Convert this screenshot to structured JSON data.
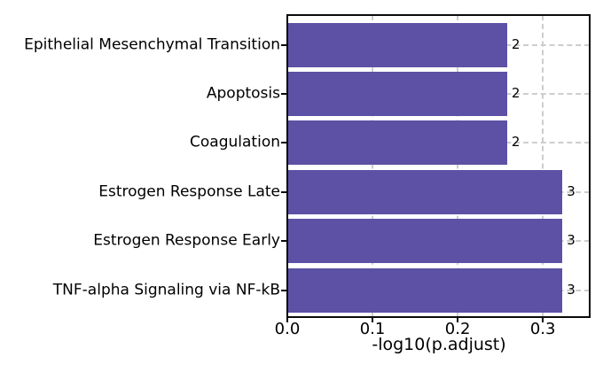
{
  "chart_data": {
    "type": "bar",
    "orientation": "horizontal",
    "title": "",
    "xlabel": "-log10(p.adjust)",
    "ylabel": "",
    "categories": [
      "Epithelial Mesenchymal Transition",
      "Apoptosis",
      "Coagulation",
      "Estrogen Response Late",
      "Estrogen Response Early",
      "TNF-alpha Signaling via NF-kB"
    ],
    "values": [
      0.258,
      0.258,
      0.258,
      0.323,
      0.323,
      0.323
    ],
    "bar_count_labels": [
      "2",
      "2",
      "2",
      "3",
      "3",
      "3"
    ],
    "x_tick_labels": [
      "0.0",
      "0.1",
      "0.2",
      "0.3"
    ],
    "x_tick_values": [
      0.0,
      0.1,
      0.2,
      0.3
    ],
    "xlim": [
      0,
      0.355
    ],
    "bar_color": "#5c51a5",
    "grid": true,
    "grid_style": "dashed",
    "grid_color": "#cdcdcd",
    "axis_color": "#0a0a0a",
    "text_color": "#000000",
    "legend": "none"
  }
}
